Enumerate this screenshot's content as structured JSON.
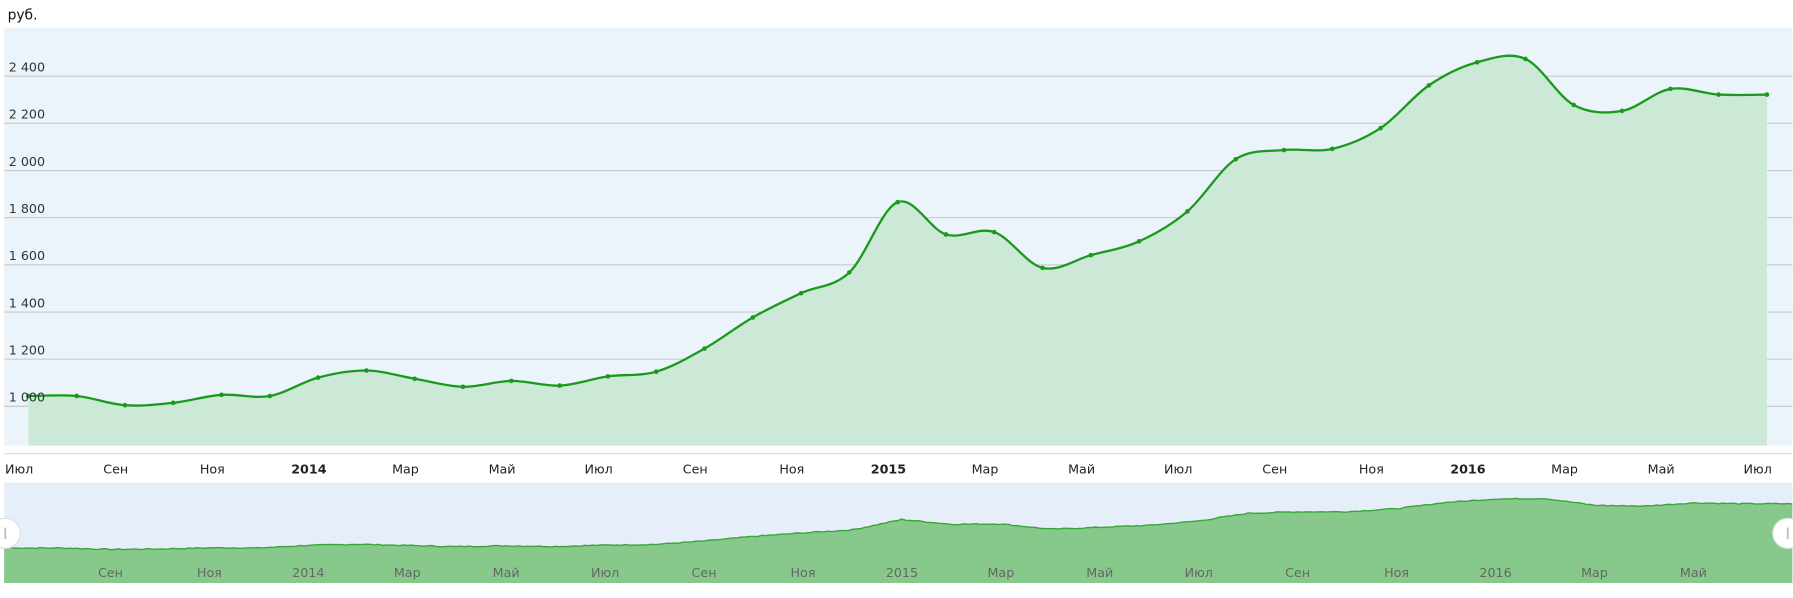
{
  "chart_data": {
    "type": "area",
    "title": "",
    "ylabel": "руб.",
    "xlabel": "",
    "ylim": [
      910,
      2600
    ],
    "yticks": [
      1000,
      1200,
      1400,
      1600,
      1800,
      2000,
      2200,
      2400
    ],
    "ytick_labels": [
      "1 000",
      "1 200",
      "1 400",
      "1 600",
      "1 800",
      "2 000",
      "2 200",
      "2 400"
    ],
    "grid": true,
    "x_start": "2013-07",
    "x_end": "2016-07",
    "x": [
      "2013-07",
      "2013-08",
      "2013-09",
      "2013-10",
      "2013-11",
      "2013-12",
      "2014-01",
      "2014-02",
      "2014-03",
      "2014-04",
      "2014-05",
      "2014-06",
      "2014-07",
      "2014-08",
      "2014-09",
      "2014-10",
      "2014-11",
      "2014-12",
      "2015-01",
      "2015-02",
      "2015-03",
      "2015-04",
      "2015-05",
      "2015-06",
      "2015-07",
      "2015-08",
      "2015-09",
      "2015-10",
      "2015-11",
      "2015-12",
      "2016-01",
      "2016-02",
      "2016-03",
      "2016-04",
      "2016-05",
      "2016-06",
      "2016-07"
    ],
    "values": [
      1044,
      1044,
      1005,
      1015,
      1049,
      1044,
      1122,
      1152,
      1117,
      1083,
      1108,
      1088,
      1127,
      1147,
      1245,
      1377,
      1480,
      1568,
      1866,
      1729,
      1739,
      1587,
      1641,
      1700,
      1827,
      2048,
      2087,
      2092,
      2180,
      2361,
      2459,
      2473,
      2278,
      2253,
      2346,
      2322,
      2322
    ],
    "xtick_labels": [
      {
        "label": "Июл",
        "year": false
      },
      {
        "label": "Сен",
        "year": false
      },
      {
        "label": "Ноя",
        "year": false
      },
      {
        "label": "2014",
        "year": true
      },
      {
        "label": "Мар",
        "year": false
      },
      {
        "label": "Май",
        "year": false
      },
      {
        "label": "Июл",
        "year": false
      },
      {
        "label": "Сен",
        "year": false
      },
      {
        "label": "Ноя",
        "year": false
      },
      {
        "label": "2015",
        "year": true
      },
      {
        "label": "Мар",
        "year": false
      },
      {
        "label": "Май",
        "year": false
      },
      {
        "label": "Июл",
        "year": false
      },
      {
        "label": "Сен",
        "year": false
      },
      {
        "label": "Ноя",
        "year": false
      },
      {
        "label": "2016",
        "year": true
      },
      {
        "label": "Мар",
        "year": false
      },
      {
        "label": "Май",
        "year": false
      },
      {
        "label": "Июл",
        "year": false
      }
    ],
    "navigator": {
      "tick_labels": [
        "Сен",
        "Ноя",
        "2014",
        "Мар",
        "Май",
        "Июл",
        "Сен",
        "Ноя",
        "2015",
        "Мар",
        "Май",
        "Июл",
        "Сен",
        "Ноя",
        "2016",
        "Мар",
        "Май"
      ],
      "selected_range": [
        "2013-07",
        "2016-07"
      ]
    },
    "colors": {
      "line": "#1a9a1a",
      "area": "#cce8d6",
      "plot_bg": "#ebf4fb",
      "grid": "#c8ccd0",
      "navigator_bg": "#e6eff9",
      "navigator_area": "#86c98a",
      "navigator_line": "#3aa53a"
    }
  }
}
